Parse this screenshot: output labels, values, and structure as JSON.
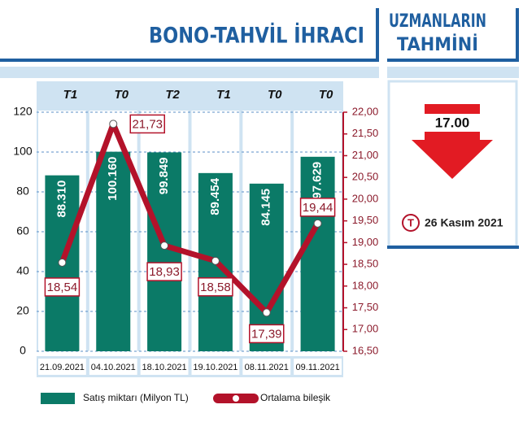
{
  "chart_data": {
    "type": "bar",
    "title": "BONO-TAHVİL İHRACI",
    "categories": [
      "21.09.2021",
      "04.10.2021",
      "18.10.2021",
      "19.10.2021",
      "08.11.2021",
      "09.11.2021"
    ],
    "top_labels": [
      "T1",
      "T0",
      "T2",
      "T1",
      "T0",
      "T0"
    ],
    "series": [
      {
        "name": "Satış miktarı (Milyon TL)",
        "type": "bar",
        "color": "#0b7a67",
        "values": [
          88.31,
          100.16,
          99.849,
          89.454,
          84.145,
          97.629
        ],
        "value_labels": [
          "88.310",
          "100.160",
          "99.849",
          "89.454",
          "84.145",
          "97.629"
        ]
      },
      {
        "name": "Ortalama bileşik",
        "type": "line",
        "axis": "y2",
        "color": "#b3122a",
        "values": [
          18.54,
          21.73,
          18.93,
          18.58,
          17.39,
          19.44
        ],
        "value_labels": [
          "18,54",
          "21,73",
          "18,93",
          "18,58",
          "17,39",
          "19,44"
        ]
      }
    ],
    "ylim": [
      0,
      120
    ],
    "yticks": [
      0,
      20,
      40,
      60,
      80,
      100,
      120
    ],
    "y2lim": [
      16.5,
      22
    ],
    "y2ticks": [
      {
        "value": 16.5,
        "label": "16,50"
      },
      {
        "value": 17,
        "label": "17,00"
      },
      {
        "value": 17.5,
        "label": "17,50"
      },
      {
        "value": 18,
        "label": "18,00"
      },
      {
        "value": 18.5,
        "label": "18,50"
      },
      {
        "value": 19,
        "label": "19,00"
      },
      {
        "value": 19.5,
        "label": "19,50"
      },
      {
        "value": 20,
        "label": "20,00"
      },
      {
        "value": 20.5,
        "label": "20,50"
      },
      {
        "value": 21,
        "label": "21,00"
      },
      {
        "value": 21.5,
        "label": "21,50"
      },
      {
        "value": 22,
        "label": "22,00"
      }
    ],
    "grid": true
  },
  "forecast": {
    "title_lines": [
      "UZMANLARIN",
      "TAHMİNİ"
    ],
    "value": "17.00",
    "date": "26 Kasım 2021"
  }
}
